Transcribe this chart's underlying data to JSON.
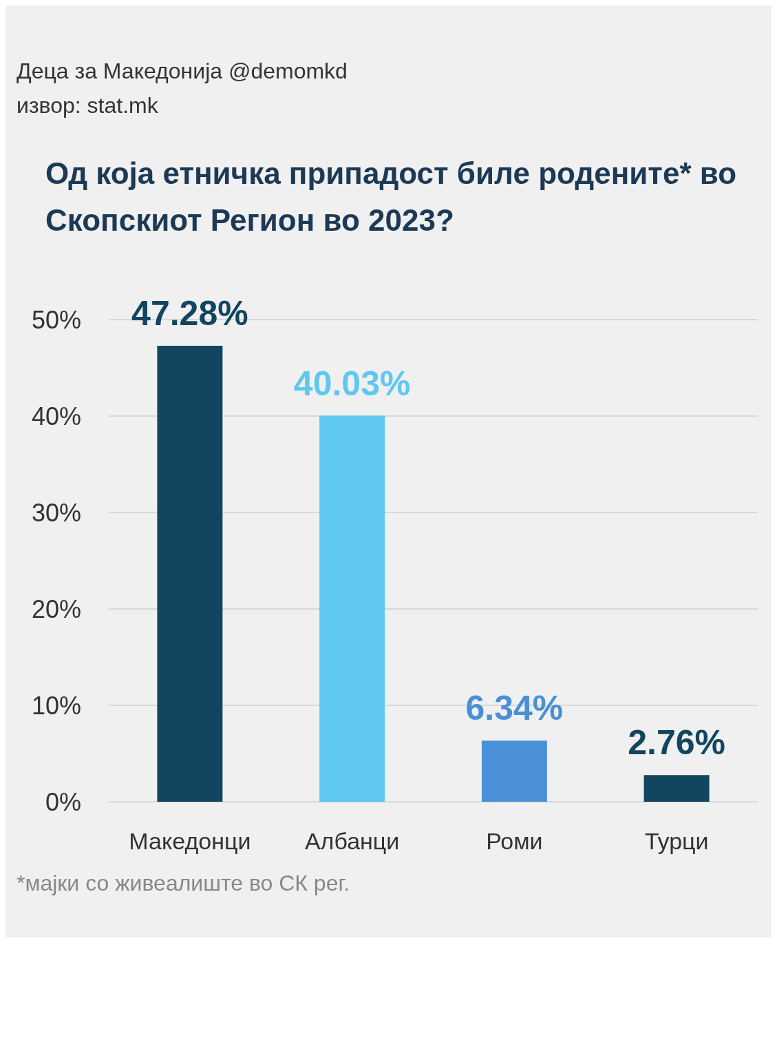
{
  "chart_data": {
    "type": "bar",
    "title": "Од која етничка припадост биле родените* во Скопскиот Регион во 2023?",
    "categories": [
      "Македонци",
      "Албанци",
      "Роми",
      "Турци"
    ],
    "values": [
      47.28,
      40.03,
      6.34,
      2.76
    ],
    "colors": [
      "#12455f",
      "#5ec8f0",
      "#4a90d6",
      "#12455f"
    ],
    "value_labels": [
      "47.28%",
      "40.03%",
      "6.34%",
      "2.76%"
    ],
    "ylim": [
      0,
      50
    ],
    "yticks": [
      {
        "value": 0,
        "label": "0%"
      },
      {
        "value": 10,
        "label": "10%"
      },
      {
        "value": 20,
        "label": "20%"
      },
      {
        "value": 30,
        "label": "30%"
      },
      {
        "value": 40,
        "label": "40%"
      },
      {
        "value": 50,
        "label": "50%"
      }
    ],
    "grid": "y",
    "annotations": [
      "Деца за Македонија @demomkd",
      "извор: stat.mk",
      "*мајки со живеалиште во СК рег."
    ]
  }
}
